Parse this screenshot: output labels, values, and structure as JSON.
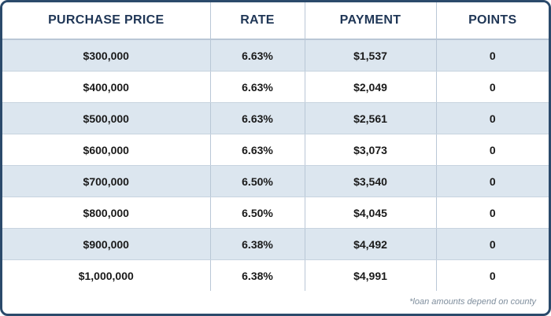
{
  "table": {
    "headers": [
      "PURCHASE PRICE",
      "RATE",
      "PAYMENT",
      "POINTS"
    ],
    "rows": [
      [
        "$300,000",
        "6.63%",
        "$1,537",
        "0"
      ],
      [
        "$400,000",
        "6.63%",
        "$2,049",
        "0"
      ],
      [
        "$500,000",
        "6.63%",
        "$2,561",
        "0"
      ],
      [
        "$600,000",
        "6.63%",
        "$3,073",
        "0"
      ],
      [
        "$700,000",
        "6.50%",
        "$3,540",
        "0"
      ],
      [
        "$800,000",
        "6.50%",
        "$4,045",
        "0"
      ],
      [
        "$900,000",
        "6.38%",
        "$4,492",
        "0"
      ],
      [
        "$1,000,000",
        "6.38%",
        "$4,991",
        "0"
      ]
    ]
  },
  "footnote": "*loan amounts depend on county",
  "colors": {
    "border": "#2b4a6b",
    "header_text": "#1f3656",
    "stripe": "#dce6ef",
    "divider": "#b9c7d6",
    "footnote_text": "#7f8e9d"
  }
}
